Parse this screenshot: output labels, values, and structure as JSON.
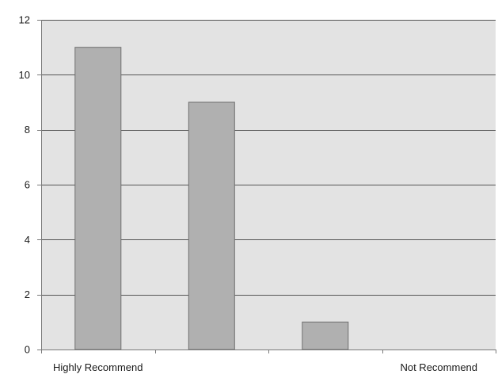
{
  "chart_data": {
    "type": "bar",
    "categories": [
      "Highly Recommend",
      "",
      "",
      "Not Recommend"
    ],
    "values": [
      11,
      9,
      1,
      0
    ],
    "title": "",
    "xlabel": "",
    "ylabel": "",
    "ylim": [
      0,
      12
    ],
    "yticks": [
      0,
      2,
      4,
      6,
      8,
      10,
      12
    ],
    "grid": true,
    "legend": "none",
    "colors": {
      "plot_background": "#e3e3e3",
      "bar_fill": "#b0b0b0",
      "bar_stroke": "#6f6f6f",
      "gridline": "#555555",
      "axis": "#7a7a7a"
    }
  }
}
